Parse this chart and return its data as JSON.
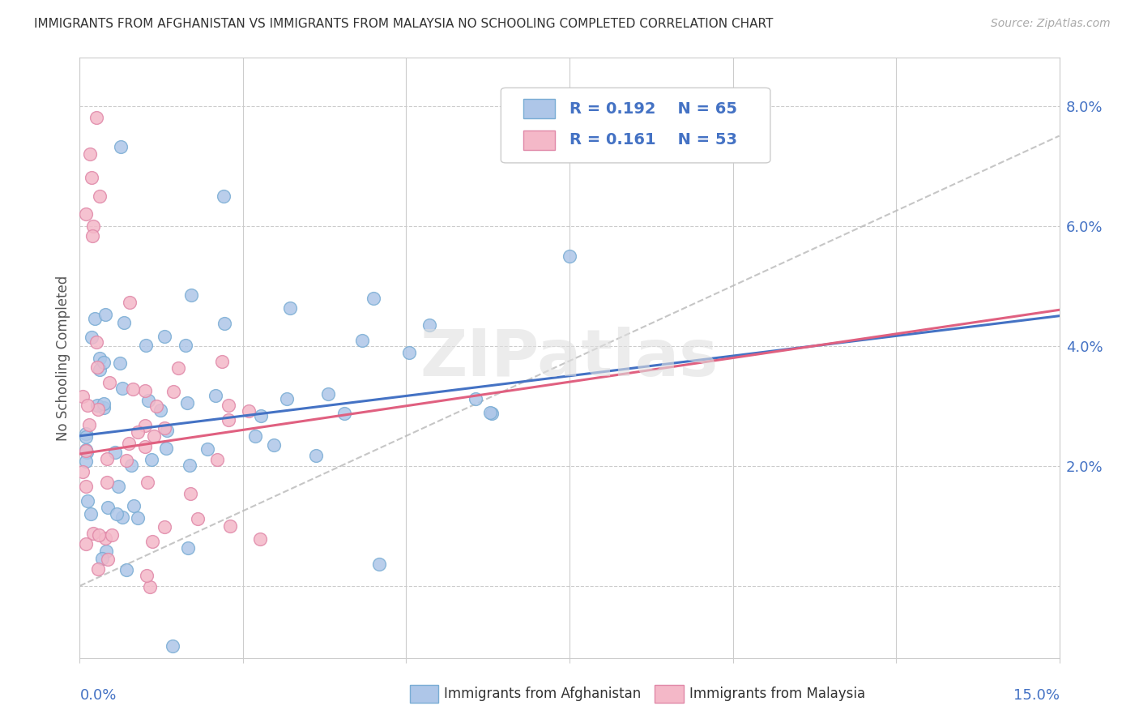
{
  "title": "IMMIGRANTS FROM AFGHANISTAN VS IMMIGRANTS FROM MALAYSIA NO SCHOOLING COMPLETED CORRELATION CHART",
  "source": "Source: ZipAtlas.com",
  "ylabel": "No Schooling Completed",
  "xlim": [
    0.0,
    0.15
  ],
  "ylim": [
    -0.012,
    0.088
  ],
  "yticks": [
    0.0,
    0.02,
    0.04,
    0.06,
    0.08
  ],
  "ytick_labels": [
    "",
    "2.0%",
    "4.0%",
    "6.0%",
    "8.0%"
  ],
  "xticks": [
    0.0,
    0.025,
    0.05,
    0.075,
    0.1,
    0.125,
    0.15
  ],
  "series1_color": "#aec6e8",
  "series1_edge": "#7aadd4",
  "series2_color": "#f4b8c8",
  "series2_edge": "#e088a8",
  "trend1_color": "#4472c4",
  "trend2_color": "#e06080",
  "diagonal_color": "#b8b8b8",
  "R1": 0.192,
  "N1": 65,
  "R2": 0.161,
  "N2": 53,
  "legend_label1": "Immigrants from Afghanistan",
  "legend_label2": "Immigrants from Malaysia",
  "watermark": "ZIPatlas"
}
